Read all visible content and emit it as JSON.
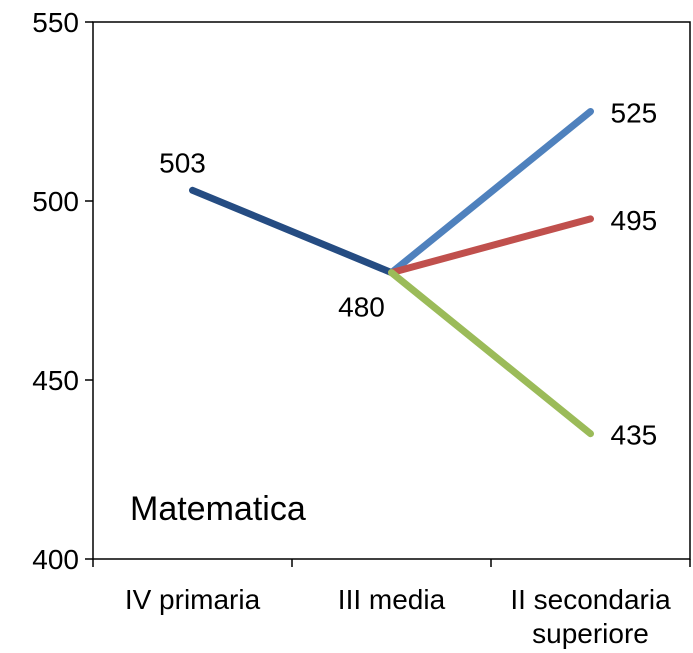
{
  "chart_data": {
    "type": "line",
    "categories": [
      "IV primaria",
      "III media",
      "II secondaria superiore"
    ],
    "category_lines": [
      [
        "IV primaria"
      ],
      [
        "III media"
      ],
      [
        "II secondaria",
        "superiore"
      ]
    ],
    "ylim": [
      400,
      550
    ],
    "yticks": [
      400,
      450,
      500,
      550
    ],
    "grid": false,
    "annotation": "Matematica",
    "series": [
      {
        "values": [
          503,
          480,
          null
        ],
        "color": "#254C82"
      },
      {
        "values": [
          null,
          480,
          525
        ],
        "color": "#4F81BD"
      },
      {
        "values": [
          null,
          480,
          495
        ],
        "color": "#C0504D"
      },
      {
        "values": [
          null,
          480,
          435
        ],
        "color": "#9BBB59"
      }
    ],
    "data_labels": [
      {
        "category": 0,
        "value": 503,
        "text": "503",
        "anchor": "above"
      },
      {
        "category": 1,
        "value": 480,
        "text": "480",
        "anchor": "below-left"
      },
      {
        "category": 2,
        "value": 525,
        "text": "525",
        "anchor": "right"
      },
      {
        "category": 2,
        "value": 495,
        "text": "495",
        "anchor": "right"
      },
      {
        "category": 2,
        "value": 435,
        "text": "435",
        "anchor": "right"
      }
    ]
  }
}
